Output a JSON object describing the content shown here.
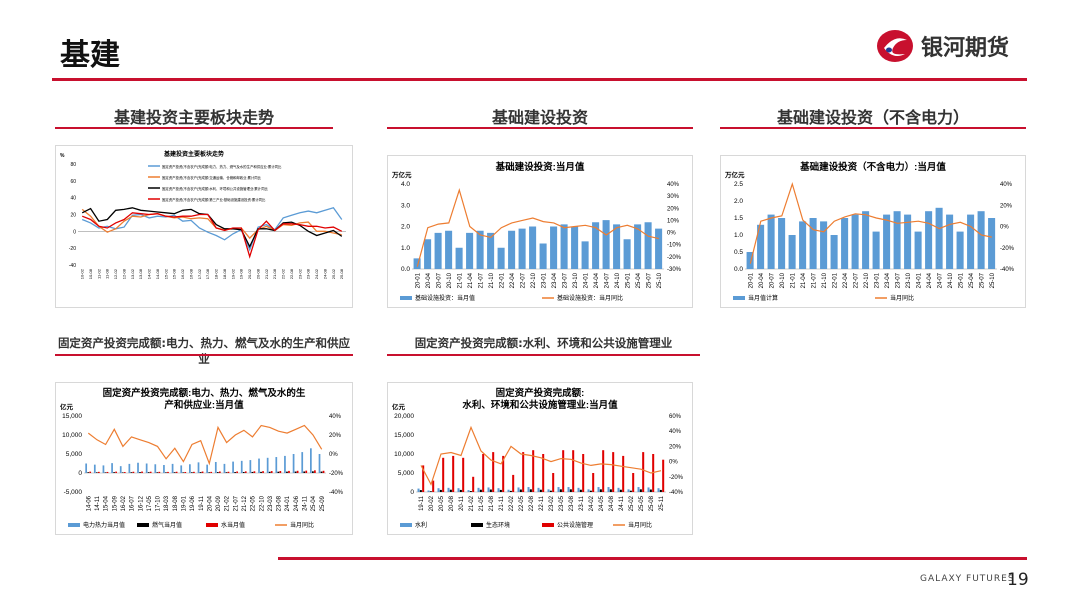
{
  "slide": {
    "title": "基建",
    "brand": "银河期货",
    "footer": "GALAXY FUTURES",
    "page": "19"
  },
  "sections": {
    "s1": "基建投资主要板块走势",
    "s2": "基础建设投资",
    "s3": "基础建设投资（不含电力）",
    "s4": "固定资产投资完成额:电力、热力、燃气及水的生产和供应业",
    "s5": "固定资产投资完成额:水利、环境和公共设施管理业"
  },
  "colors": {
    "accent": "#c8102e",
    "blue": "#5b9bd5",
    "orange": "#ed7d31",
    "red": "#e00000",
    "black": "#000000"
  },
  "chart_data": [
    {
      "id": "c1",
      "type": "line",
      "title": "基建投资主要板块走势",
      "ylabel": "%",
      "ylim": [
        -40,
        80
      ],
      "yticks": [
        "80",
        "60",
        "40",
        "20",
        "0",
        "-20",
        "-40"
      ],
      "x": [
        "10-02",
        "10-08",
        "11-02",
        "11-08",
        "12-02",
        "12-08",
        "13-02",
        "13-08",
        "14-02",
        "14-08",
        "15-02",
        "15-08",
        "16-02",
        "16-08",
        "17-02",
        "17-08",
        "18-02",
        "18-08",
        "19-02",
        "19-08",
        "20-02",
        "20-08",
        "21-02",
        "21-08",
        "22-02",
        "22-08",
        "23-02",
        "23-08",
        "24-02",
        "24-08",
        "25-02",
        "25-08"
      ],
      "series": [
        {
          "name": "固定资产投资(不含农户)完成额:电力、热力、燃气及水的生产和供应业:累计同比",
          "color": "#5b9bd5",
          "values": [
            14,
            10,
            4,
            6,
            3,
            5,
            19,
            20,
            16,
            18,
            17,
            19,
            12,
            13,
            4,
            -1,
            -5,
            -10,
            -3,
            2,
            -22,
            5,
            8,
            2,
            16,
            19,
            22,
            24,
            22,
            25,
            28,
            14
          ]
        },
        {
          "name": "固定资产投资(不含农户)完成额:交通运输、仓储和邮政业:累计同比",
          "color": "#ed7d31",
          "values": [
            26,
            18,
            6,
            -1,
            3,
            12,
            18,
            17,
            20,
            21,
            18,
            16,
            17,
            15,
            16,
            15,
            4,
            2,
            3,
            4,
            -8,
            2,
            6,
            1,
            8,
            7,
            10,
            11,
            0,
            0,
            -2,
            -4
          ]
        },
        {
          "name": "固定资产投资(不含农户)完成额:水利、环境和公共设施管理业:累计同比",
          "color": "#000000",
          "values": [
            22,
            27,
            12,
            14,
            25,
            26,
            28,
            25,
            24,
            23,
            22,
            21,
            25,
            26,
            21,
            20,
            8,
            3,
            3,
            2,
            -18,
            3,
            3,
            1,
            10,
            11,
            7,
            0,
            -5,
            -2,
            1,
            -6
          ]
        },
        {
          "name": "固定资产投资(不含农户)完成额:第三产业:基础设施建设投资:累计同比",
          "color": "#e00000",
          "values": [
            18,
            14,
            6,
            4,
            10,
            14,
            22,
            21,
            20,
            21,
            18,
            17,
            18,
            18,
            20,
            20,
            4,
            1,
            4,
            4,
            -30,
            2,
            12,
            1,
            9,
            9,
            8,
            6,
            6,
            4,
            5,
            0
          ]
        }
      ]
    },
    {
      "id": "c2",
      "type": "bar+line",
      "title": "基础建设投资:当月值",
      "ylabel": "万亿元",
      "ylim": [
        0,
        4
      ],
      "y2lim": [
        -30,
        40
      ],
      "yticks": [
        "4.0",
        "3.0",
        "2.0",
        "1.0",
        "0.0"
      ],
      "y2ticks": [
        "40%",
        "30%",
        "20%",
        "10%",
        "0%",
        "-10%",
        "-20%",
        "-30%"
      ],
      "x": [
        "20-01",
        "20-04",
        "20-07",
        "20-10",
        "21-01",
        "21-04",
        "21-07",
        "21-10",
        "22-01",
        "22-04",
        "22-07",
        "22-10",
        "23-01",
        "23-04",
        "23-07",
        "23-10",
        "24-01",
        "24-04",
        "24-07",
        "24-10",
        "25-01",
        "25-04",
        "25-07",
        "25-10"
      ],
      "series": [
        {
          "name": "基础设施投资：当月值",
          "color": "#5b9bd5",
          "values": [
            0.5,
            1.4,
            1.7,
            1.8,
            1.0,
            1.7,
            1.8,
            1.7,
            1.0,
            1.8,
            1.9,
            2.0,
            1.2,
            2.0,
            2.1,
            2.0,
            1.3,
            2.2,
            2.3,
            2.1,
            1.4,
            2.1,
            2.2,
            1.9
          ]
        },
        {
          "name": "基础设施投资：当月同比",
          "color": "#ed7d31",
          "values": [
            -28,
            4,
            7,
            8,
            35,
            5,
            -2,
            -4,
            4,
            8,
            10,
            12,
            9,
            8,
            4,
            5,
            6,
            4,
            -2,
            4,
            6,
            3,
            -3,
            -5
          ]
        }
      ]
    },
    {
      "id": "c3",
      "type": "bar+line",
      "title": "基础建设投资（不含电力）:当月值",
      "ylabel": "万亿元",
      "ylim": [
        0,
        2.5
      ],
      "y2lim": [
        -40,
        40
      ],
      "yticks": [
        "2.5",
        "2.0",
        "1.5",
        "1.0",
        "0.5",
        "0.0"
      ],
      "y2ticks": [
        "40%",
        "20%",
        "0%",
        "-20%",
        "-40%"
      ],
      "x": [
        "20-01",
        "20-04",
        "20-07",
        "20-10",
        "21-01",
        "21-04",
        "21-07",
        "21-10",
        "22-01",
        "22-04",
        "22-07",
        "22-10",
        "23-01",
        "23-04",
        "23-07",
        "23-10",
        "24-01",
        "24-04",
        "24-07",
        "24-10",
        "25-01",
        "25-04",
        "25-07",
        "25-10"
      ],
      "series": [
        {
          "name": "当月值计算",
          "color": "#5b9bd5",
          "values": [
            0.5,
            1.3,
            1.6,
            1.5,
            1.0,
            1.4,
            1.5,
            1.4,
            1.0,
            1.5,
            1.6,
            1.7,
            1.1,
            1.6,
            1.7,
            1.6,
            1.1,
            1.7,
            1.8,
            1.6,
            1.1,
            1.6,
            1.7,
            1.5
          ]
        },
        {
          "name": "当月同比",
          "color": "#ed7d31",
          "values": [
            -35,
            5,
            8,
            10,
            40,
            6,
            -3,
            -5,
            5,
            9,
            12,
            11,
            8,
            6,
            3,
            4,
            5,
            3,
            -2,
            2,
            4,
            0,
            -8,
            -10
          ]
        }
      ]
    },
    {
      "id": "c4",
      "type": "bar+line",
      "title": "固定资产投资完成额:电力、热力、燃气及水的生产和供应业:当月值",
      "title_lines": [
        "固定资产投资完成额:电力、热力、燃气及水的生",
        "产和供应业:当月值"
      ],
      "ylabel": "亿元",
      "ylim": [
        -5000,
        15000
      ],
      "y2lim": [
        -40,
        40
      ],
      "yticks": [
        "15,000",
        "10,000",
        "5,000",
        "0",
        "-5,000"
      ],
      "y2ticks": [
        "40%",
        "20%",
        "0%",
        "-20%",
        "-40%"
      ],
      "x": [
        "14-06",
        "14-11",
        "15-04",
        "15-09",
        "16-02",
        "16-07",
        "16-12",
        "17-05",
        "17-10",
        "18-03",
        "18-08",
        "19-01",
        "19-06",
        "19-11",
        "20-04",
        "20-09",
        "21-02",
        "21-07",
        "21-12",
        "22-05",
        "22-10",
        "23-03",
        "23-08",
        "24-01",
        "24-06",
        "24-11",
        "25-04",
        "25-09"
      ],
      "series": [
        {
          "name": "电力热力当月值",
          "color": "#5b9bd5",
          "values": [
            2500,
            2200,
            2000,
            2600,
            1800,
            2400,
            2700,
            2500,
            2300,
            2100,
            2400,
            2000,
            2300,
            2800,
            2200,
            2900,
            2400,
            3000,
            3200,
            3400,
            3800,
            4000,
            4200,
            4500,
            5000,
            5500,
            6500,
            5000
          ]
        },
        {
          "name": "燃气当月值",
          "color": "#000000",
          "values": [
            200,
            180,
            160,
            220,
            150,
            200,
            230,
            210,
            190,
            170,
            200,
            160,
            190,
            230,
            180,
            240,
            200,
            250,
            260,
            280,
            300,
            320,
            340,
            360,
            380,
            400,
            450,
            380
          ]
        },
        {
          "name": "水当月值",
          "color": "#e00000",
          "values": [
            350,
            300,
            280,
            360,
            250,
            330,
            370,
            340,
            310,
            290,
            330,
            270,
            310,
            380,
            300,
            390,
            330,
            400,
            430,
            450,
            480,
            500,
            520,
            550,
            580,
            620,
            700,
            580
          ]
        },
        {
          "name": "当月同比",
          "color": "#ed7d31",
          "values": [
            22,
            15,
            10,
            26,
            8,
            18,
            15,
            12,
            8,
            -5,
            6,
            -8,
            10,
            14,
            -10,
            28,
            12,
            20,
            25,
            18,
            30,
            28,
            24,
            22,
            26,
            30,
            20,
            5
          ]
        }
      ]
    },
    {
      "id": "c5",
      "type": "bar+line",
      "title": "固定资产投资完成额:水利、环境和公共设施管理业:当月值",
      "title_lines": [
        "固定资产投资完成额:",
        "水利、环境和公共设施管理业:当月值"
      ],
      "ylabel": "亿元",
      "ylim": [
        0,
        20000
      ],
      "y2lim": [
        -40,
        60
      ],
      "yticks": [
        "20,000",
        "15,000",
        "10,000",
        "5,000",
        "0"
      ],
      "y2ticks": [
        "60%",
        "40%",
        "20%",
        "0%",
        "-20%",
        "-40%"
      ],
      "x": [
        "19-11",
        "20-02",
        "20-05",
        "20-08",
        "20-11",
        "21-02",
        "21-05",
        "21-08",
        "21-11",
        "22-02",
        "22-05",
        "22-08",
        "22-11",
        "23-02",
        "23-05",
        "23-08",
        "23-11",
        "24-02",
        "24-05",
        "24-08",
        "24-11",
        "25-02",
        "25-05",
        "25-08",
        "25-11"
      ],
      "series": [
        {
          "name": "水利",
          "color": "#5b9bd5",
          "values": [
            900,
            400,
            1000,
            1100,
            1000,
            500,
            1100,
            1200,
            1000,
            600,
            1200,
            1300,
            1100,
            700,
            1300,
            1300,
            1100,
            700,
            1300,
            1300,
            1100,
            700,
            1300,
            1200,
            1000
          ]
        },
        {
          "name": "生态环境",
          "color": "#000000",
          "values": [
            500,
            200,
            550,
            600,
            550,
            250,
            600,
            650,
            550,
            300,
            650,
            700,
            600,
            350,
            700,
            700,
            600,
            350,
            700,
            700,
            600,
            350,
            700,
            650,
            550
          ]
        },
        {
          "name": "公共设施管理",
          "color": "#e00000",
          "values": [
            7000,
            3000,
            9000,
            9500,
            9000,
            4000,
            10000,
            10500,
            9500,
            4500,
            10500,
            11000,
            10000,
            5000,
            11000,
            11000,
            10000,
            5000,
            11000,
            10500,
            9500,
            5000,
            10500,
            10000,
            8500
          ]
        },
        {
          "name": "当月同比",
          "color": "#ed7d31",
          "values": [
            -5,
            -30,
            10,
            12,
            8,
            45,
            14,
            2,
            -3,
            20,
            10,
            8,
            5,
            0,
            4,
            3,
            -2,
            -5,
            -3,
            -4,
            -6,
            -8,
            -10,
            -15,
            -12
          ]
        }
      ]
    }
  ]
}
